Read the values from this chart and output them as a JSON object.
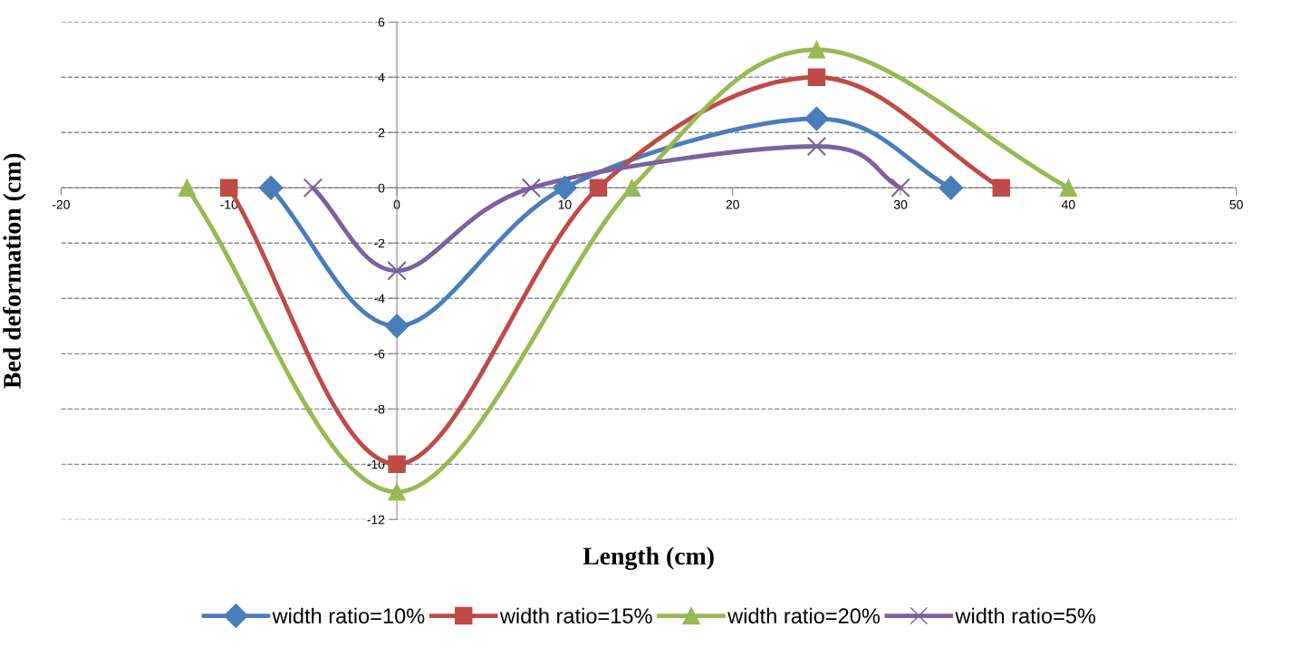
{
  "chart_data": {
    "type": "line",
    "xlabel": "Length (cm)",
    "ylabel": "Bed deformation (cm)",
    "xlim": [
      -20,
      50
    ],
    "xticks": [
      -20,
      -10,
      0,
      10,
      20,
      30,
      40,
      50
    ],
    "ylim": [
      -12,
      6
    ],
    "yticks": [
      -12,
      -10,
      -8,
      -6,
      -4,
      -2,
      0,
      2,
      4,
      6
    ],
    "grid": "y",
    "legend": "bottom",
    "line_style": "solid",
    "series": [
      {
        "name": "width ratio=10%",
        "color": "#4a7ebb",
        "marker": "diamond",
        "x": [
          -7.5,
          0,
          10,
          25,
          33
        ],
        "values": [
          0,
          -5,
          0,
          2.5,
          0
        ]
      },
      {
        "name": "width ratio=15%",
        "color": "#be4b48",
        "marker": "square",
        "x": [
          -10,
          0,
          12,
          25,
          36
        ],
        "values": [
          0,
          -10,
          0,
          4,
          0
        ]
      },
      {
        "name": "width ratio=20%",
        "color": "#98b954",
        "marker": "triangle",
        "x": [
          -12.5,
          0,
          14,
          25,
          40
        ],
        "values": [
          0,
          -11,
          0,
          5,
          0
        ]
      },
      {
        "name": "width ratio=5%",
        "color": "#7d60a0",
        "marker": "cross",
        "x": [
          -5,
          0,
          8,
          25,
          30
        ],
        "values": [
          0,
          -3,
          0,
          1.5,
          0
        ]
      }
    ]
  }
}
